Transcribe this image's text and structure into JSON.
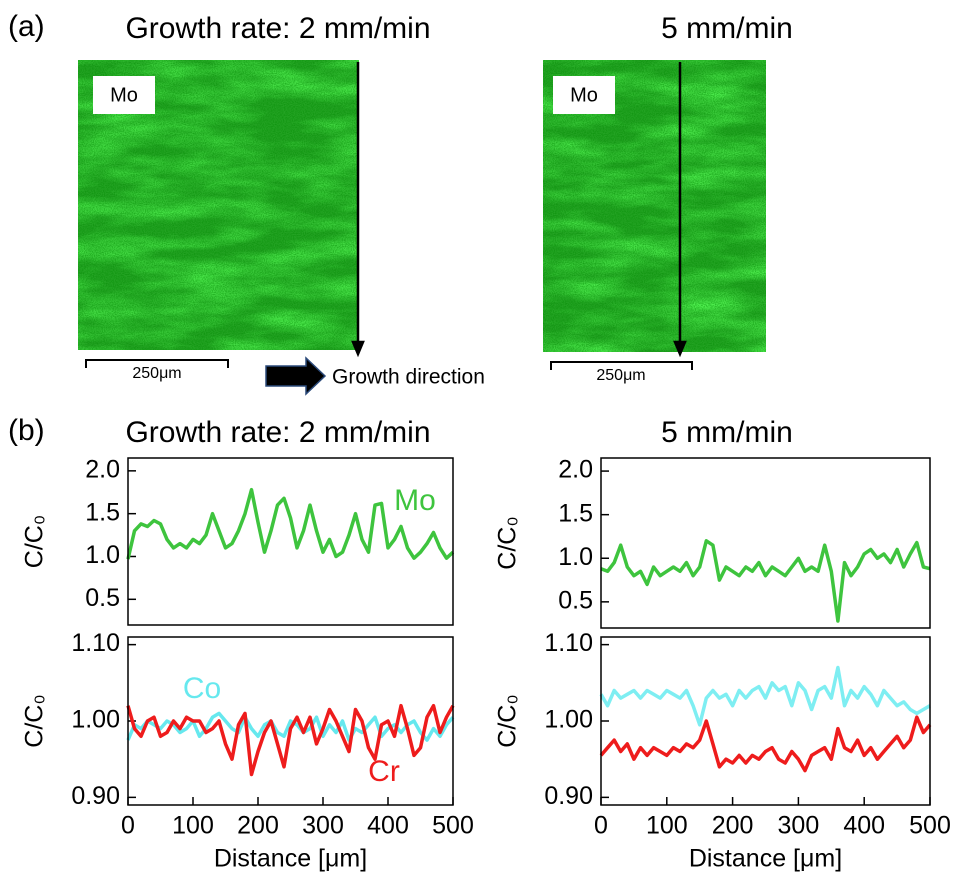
{
  "panel_a": {
    "label": "(a)",
    "title_left": "Growth rate: 2 mm/min",
    "title_right": "5 mm/min",
    "image_label_left": "Mo",
    "image_label_right": "Mo",
    "scale_bar_left": "250μm",
    "scale_bar_right": "250μm",
    "growth_direction": "Growth direction"
  },
  "panel_b": {
    "label": "(b)",
    "title_left": "Growth rate: 2 mm/min",
    "title_right": "5 mm/min"
  },
  "chart_data": [
    {
      "type": "line",
      "y_label": "C/C₀",
      "xlim": [
        0,
        500
      ],
      "ylim": [
        0.2,
        2.15
      ],
      "yticks": [
        {
          "value": 0.5,
          "label": "0.5"
        },
        {
          "value": 1.0,
          "label": "1.0"
        },
        {
          "value": 1.5,
          "label": "1.5"
        },
        {
          "value": 2.0,
          "label": "2.0"
        }
      ],
      "x": [
        0,
        10,
        20,
        30,
        40,
        50,
        60,
        70,
        80,
        90,
        100,
        110,
        120,
        130,
        140,
        150,
        160,
        170,
        180,
        190,
        200,
        210,
        220,
        230,
        240,
        250,
        260,
        270,
        280,
        290,
        300,
        310,
        320,
        330,
        340,
        350,
        360,
        370,
        380,
        390,
        400,
        410,
        420,
        430,
        440,
        450,
        460,
        470,
        480,
        490,
        500
      ],
      "series": [
        {
          "name": "Mo",
          "color": "#3ec43e",
          "values": [
            0.97,
            1.3,
            1.38,
            1.35,
            1.42,
            1.38,
            1.2,
            1.1,
            1.15,
            1.1,
            1.2,
            1.15,
            1.25,
            1.5,
            1.3,
            1.1,
            1.15,
            1.3,
            1.5,
            1.78,
            1.4,
            1.05,
            1.3,
            1.6,
            1.68,
            1.45,
            1.1,
            1.3,
            1.6,
            1.3,
            1.05,
            1.2,
            1.0,
            1.05,
            1.25,
            1.5,
            1.2,
            1.05,
            1.6,
            1.62,
            1.1,
            1.2,
            1.35,
            1.1,
            0.98,
            1.05,
            1.15,
            1.28,
            1.1,
            0.98,
            1.05
          ]
        }
      ]
    },
    {
      "type": "line",
      "y_label": "C/C₀",
      "xlim": [
        0,
        500
      ],
      "ylim": [
        0.2,
        2.15
      ],
      "yticks": [
        {
          "value": 0.5,
          "label": "0.5"
        },
        {
          "value": 1.0,
          "label": "1.0"
        },
        {
          "value": 1.5,
          "label": "1.5"
        },
        {
          "value": 2.0,
          "label": "2.0"
        }
      ],
      "x": [
        0,
        10,
        20,
        30,
        40,
        50,
        60,
        70,
        80,
        90,
        100,
        110,
        120,
        130,
        140,
        150,
        160,
        170,
        180,
        190,
        200,
        210,
        220,
        230,
        240,
        250,
        260,
        270,
        280,
        290,
        300,
        310,
        320,
        330,
        340,
        350,
        360,
        370,
        380,
        390,
        400,
        410,
        420,
        430,
        440,
        450,
        460,
        470,
        480,
        490,
        500
      ],
      "series": [
        {
          "color": "#3ec43e",
          "values": [
            0.88,
            0.85,
            0.95,
            1.15,
            0.9,
            0.8,
            0.85,
            0.7,
            0.9,
            0.8,
            0.85,
            0.9,
            0.85,
            0.95,
            0.8,
            0.9,
            1.2,
            1.15,
            0.75,
            0.9,
            0.85,
            0.8,
            0.9,
            0.85,
            0.95,
            0.8,
            0.9,
            0.85,
            0.8,
            0.9,
            1.0,
            0.85,
            0.9,
            0.85,
            1.15,
            0.85,
            0.28,
            0.95,
            0.8,
            0.9,
            1.05,
            1.1,
            1.0,
            1.05,
            0.95,
            1.1,
            0.9,
            1.05,
            1.18,
            0.9,
            0.88
          ]
        }
      ]
    },
    {
      "type": "line",
      "x_label": "Distance [μm]",
      "y_label": "C/C₀",
      "xlim": [
        0,
        500
      ],
      "ylim": [
        0.89,
        1.11
      ],
      "xticks": [
        0,
        100,
        200,
        300,
        400,
        500
      ],
      "yticks": [
        {
          "value": 0.9,
          "label": "0.90"
        },
        {
          "value": 1.0,
          "label": "1.00"
        },
        {
          "value": 1.1,
          "label": "1.10"
        }
      ],
      "x": [
        0,
        10,
        20,
        30,
        40,
        50,
        60,
        70,
        80,
        90,
        100,
        110,
        120,
        130,
        140,
        150,
        160,
        170,
        180,
        190,
        200,
        210,
        220,
        230,
        240,
        250,
        260,
        270,
        280,
        290,
        300,
        310,
        320,
        330,
        340,
        350,
        360,
        370,
        380,
        390,
        400,
        410,
        420,
        430,
        440,
        450,
        460,
        470,
        480,
        490,
        500
      ],
      "series": [
        {
          "name": "Co",
          "color": "#66e8ee",
          "values": [
            0.975,
            0.995,
            0.99,
            1.0,
            0.995,
            0.99,
            1.0,
            0.995,
            0.985,
            0.99,
            1.0,
            0.98,
            0.99,
            1.005,
            1.01,
            1.0,
            0.99,
            0.985,
            1.005,
            0.99,
            0.98,
            0.995,
            1.0,
            0.985,
            0.98,
            1.0,
            0.995,
            0.985,
            0.99,
            1.005,
            0.98,
            0.995,
            0.985,
            1.0,
            0.975,
            0.99,
            0.985,
            0.995,
            1.005,
            0.98,
            0.99,
            0.995,
            0.985,
            0.995,
            1.0,
            0.985,
            0.975,
            0.99,
            0.98,
            0.995,
            1.005
          ]
        },
        {
          "name": "Cr",
          "color": "#ee1c1c",
          "values": [
            1.02,
            0.99,
            0.98,
            1.0,
            1.005,
            0.98,
            0.985,
            1.0,
            0.99,
            1.005,
            1.0,
            1.0,
            0.985,
            0.99,
            1.0,
            0.97,
            0.95,
            0.995,
            1.01,
            0.93,
            0.96,
            0.985,
            1.0,
            0.97,
            0.94,
            0.99,
            1.005,
            0.985,
            1.005,
            0.97,
            0.99,
            1.015,
            1.0,
            0.98,
            0.96,
            1.015,
            1.0,
            0.965,
            0.95,
            0.995,
            1.0,
            0.98,
            1.02,
            0.99,
            0.955,
            0.965,
            1.005,
            1.02,
            0.985,
            1.005,
            1.02
          ]
        }
      ]
    },
    {
      "type": "line",
      "x_label": "Distance [μm]",
      "y_label": "C/C₀",
      "xlim": [
        0,
        500
      ],
      "ylim": [
        0.89,
        1.11
      ],
      "xticks": [
        0,
        100,
        200,
        300,
        400,
        500
      ],
      "yticks": [
        {
          "value": 0.9,
          "label": "0.90"
        },
        {
          "value": 1.0,
          "label": "1.00"
        },
        {
          "value": 1.1,
          "label": "1.10"
        }
      ],
      "x": [
        0,
        10,
        20,
        30,
        40,
        50,
        60,
        70,
        80,
        90,
        100,
        110,
        120,
        130,
        140,
        150,
        160,
        170,
        180,
        190,
        200,
        210,
        220,
        230,
        240,
        250,
        260,
        270,
        280,
        290,
        300,
        310,
        320,
        330,
        340,
        350,
        360,
        370,
        380,
        390,
        400,
        410,
        420,
        430,
        440,
        450,
        460,
        470,
        480,
        490,
        500
      ],
      "series": [
        {
          "color": "#7eeef2",
          "values": [
            1.035,
            1.02,
            1.04,
            1.03,
            1.035,
            1.04,
            1.03,
            1.04,
            1.035,
            1.03,
            1.04,
            1.035,
            1.03,
            1.04,
            1.02,
            0.995,
            1.03,
            1.04,
            1.03,
            1.035,
            1.02,
            1.04,
            1.03,
            1.04,
            1.045,
            1.03,
            1.05,
            1.04,
            1.045,
            1.02,
            1.05,
            1.04,
            1.015,
            1.04,
            1.045,
            1.03,
            1.07,
            1.02,
            1.04,
            1.03,
            1.045,
            1.035,
            1.02,
            1.04,
            1.03,
            1.02,
            1.025,
            1.015,
            1.01,
            1.015,
            1.02
          ]
        },
        {
          "color": "#ee1c1c",
          "values": [
            0.955,
            0.965,
            0.975,
            0.96,
            0.97,
            0.95,
            0.965,
            0.955,
            0.965,
            0.96,
            0.955,
            0.965,
            0.96,
            0.97,
            0.965,
            0.975,
            1.0,
            0.97,
            0.94,
            0.95,
            0.945,
            0.955,
            0.945,
            0.955,
            0.95,
            0.96,
            0.965,
            0.95,
            0.945,
            0.96,
            0.95,
            0.935,
            0.955,
            0.96,
            0.965,
            0.95,
            0.99,
            0.965,
            0.96,
            0.975,
            0.955,
            0.965,
            0.95,
            0.96,
            0.97,
            0.98,
            0.965,
            0.975,
            1.005,
            0.985,
            0.995
          ]
        }
      ]
    }
  ]
}
